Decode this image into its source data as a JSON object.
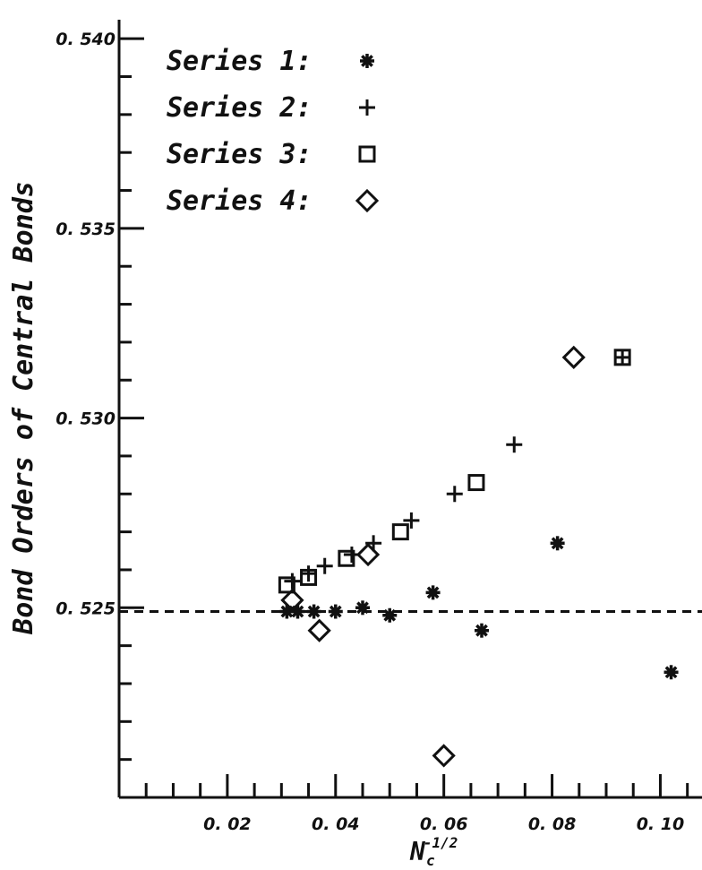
{
  "chart_data": {
    "type": "scatter",
    "title": "",
    "ylabel": "Bond Orders of Central Bonds",
    "xlabel": {
      "main": "N",
      "sub": "c",
      "sup": "-1/2"
    },
    "xlim": [
      0.0,
      0.108
    ],
    "ylim": [
      0.52,
      0.5405
    ],
    "xticks": [
      0.02,
      0.04,
      0.06,
      0.08,
      0.1
    ],
    "xtick_labels": [
      "0. 02",
      "0. 04",
      "0. 06",
      "0. 08",
      "0. 10"
    ],
    "yticks": [
      0.525,
      0.53,
      0.535,
      0.54
    ],
    "ytick_labels": [
      "0. 525",
      "0. 530",
      "0. 535",
      "0. 540"
    ],
    "reference_line": {
      "y": 0.5249,
      "style": "dashed"
    },
    "legend": {
      "placement": "top-left"
    },
    "series": [
      {
        "name": "Series 1:",
        "marker": "asterisk",
        "points": [
          [
            0.031,
            0.5249
          ],
          [
            0.033,
            0.5249
          ],
          [
            0.036,
            0.5249
          ],
          [
            0.04,
            0.5249
          ],
          [
            0.045,
            0.525
          ],
          [
            0.05,
            0.5248
          ],
          [
            0.058,
            0.5254
          ],
          [
            0.067,
            0.5244
          ],
          [
            0.081,
            0.5267
          ],
          [
            0.102,
            0.5233
          ]
        ]
      },
      {
        "name": "Series 2:",
        "marker": "plus",
        "points": [
          [
            0.032,
            0.5257
          ],
          [
            0.035,
            0.5259
          ],
          [
            0.038,
            0.5261
          ],
          [
            0.043,
            0.5264
          ],
          [
            0.047,
            0.5267
          ],
          [
            0.054,
            0.5273
          ],
          [
            0.062,
            0.528
          ],
          [
            0.073,
            0.5293
          ],
          [
            0.093,
            0.5316
          ]
        ]
      },
      {
        "name": "Series 3:",
        "marker": "square",
        "points": [
          [
            0.031,
            0.5256
          ],
          [
            0.035,
            0.5258
          ],
          [
            0.042,
            0.5263
          ],
          [
            0.052,
            0.527
          ],
          [
            0.066,
            0.5283
          ],
          [
            0.093,
            0.5316
          ]
        ]
      },
      {
        "name": "Series 4:",
        "marker": "diamond",
        "points": [
          [
            0.032,
            0.5252
          ],
          [
            0.037,
            0.5244
          ],
          [
            0.046,
            0.5264
          ],
          [
            0.06,
            0.5211
          ],
          [
            0.084,
            0.5316
          ]
        ]
      }
    ]
  }
}
